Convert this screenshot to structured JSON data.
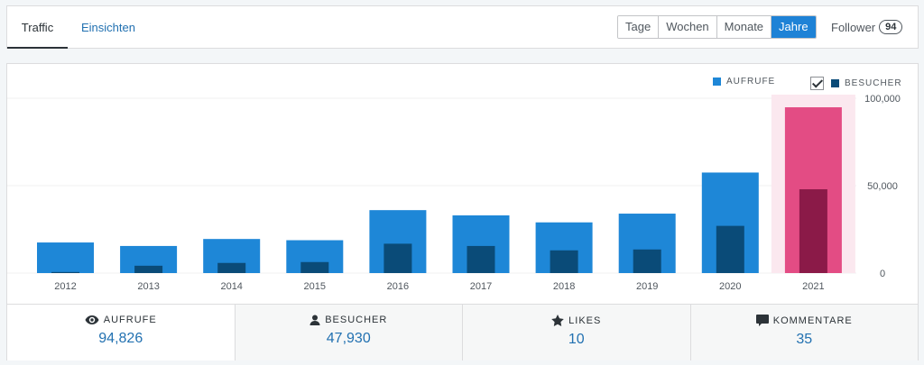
{
  "tabs": {
    "traffic": "Traffic",
    "insights": "Einsichten"
  },
  "period": {
    "options": [
      "Tage",
      "Wochen",
      "Monate",
      "Jahre"
    ],
    "active": "Jahre"
  },
  "follower": {
    "label": "Follower",
    "count": "94"
  },
  "legend": {
    "views": "AUFRUFE",
    "visitors": "BESUCHER"
  },
  "colors": {
    "views": "#1e87d7",
    "visitors": "#0a4b78",
    "selected_views": "#e34c84",
    "selected_visitors": "#8b1a48",
    "selected_band": "#fbe8ef"
  },
  "chart_data": {
    "type": "bar",
    "categories": [
      "2012",
      "2013",
      "2014",
      "2015",
      "2016",
      "2017",
      "2018",
      "2019",
      "2020",
      "2021"
    ],
    "series": [
      {
        "name": "AUFRUFE",
        "values": [
          17500,
          15500,
          19500,
          18800,
          36000,
          33000,
          29000,
          34000,
          57500,
          94826
        ]
      },
      {
        "name": "BESUCHER",
        "values": [
          600,
          4200,
          5800,
          6300,
          16800,
          15500,
          13000,
          13500,
          27000,
          47930
        ]
      }
    ],
    "y_ticks": [
      "100,000",
      "50,000",
      "0"
    ],
    "ylim": [
      0,
      100000
    ],
    "selected": "2021",
    "grid": true
  },
  "stats": [
    {
      "icon": "eye-icon",
      "label": "AUFRUFE",
      "value": "94,826"
    },
    {
      "icon": "person-icon",
      "label": "BESUCHER",
      "value": "47,930"
    },
    {
      "icon": "star-icon",
      "label": "LIKES",
      "value": "10"
    },
    {
      "icon": "comment-icon",
      "label": "KOMMENTARE",
      "value": "35"
    }
  ]
}
